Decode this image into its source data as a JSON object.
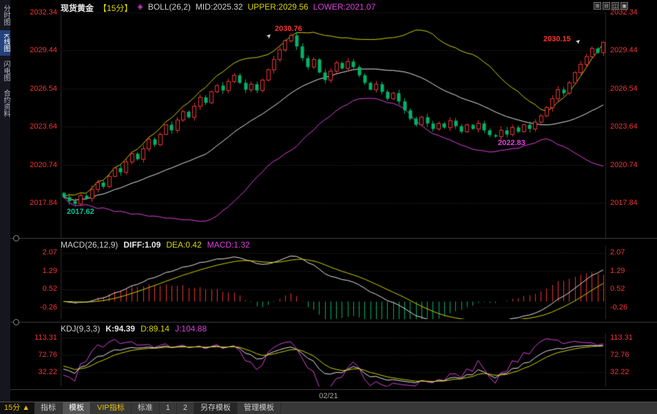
{
  "window": {
    "controls": [
      {
        "name": "grid",
        "glyph": "⊞"
      },
      {
        "name": "split",
        "glyph": "⊟"
      },
      {
        "name": "window",
        "glyph": "◫"
      },
      {
        "name": "panel",
        "glyph": "▣"
      }
    ]
  },
  "sidebar": {
    "items": [
      {
        "label": "分时图",
        "active": false
      },
      {
        "label": "K线图",
        "active": true
      },
      {
        "label": "闪电图",
        "active": false
      },
      {
        "label": "合约资料",
        "active": false
      }
    ]
  },
  "header": {
    "symbol": "现货黄金",
    "period": "【15分】",
    "indicator_icon": "◈",
    "boll_label": "BOLL(26,2)",
    "mid_label": "MID:2025.32",
    "upper_label": "UPPER:2029.56",
    "lower_label": "LOWER:2021.07"
  },
  "main_chart": {
    "y_axis": [
      "2032.34",
      "2029.44",
      "2026.54",
      "2023.64",
      "2020.74",
      "2017.84"
    ],
    "annotations": {
      "peak1": "2030.76",
      "peak2": "2030.15",
      "dip": "2022.83",
      "start_low": "2017.62"
    }
  },
  "macd": {
    "title": "MACD(26,12,9)",
    "diff_label": "DIFF:1.09",
    "dea_label": "DEA:0.42",
    "macd_label": "MACD:1.32",
    "y_axis": [
      "2.07",
      "1.29",
      "0.52",
      "-0.26"
    ]
  },
  "kdj": {
    "title": "KDJ(9,3,3)",
    "k_label": "K:94.39",
    "d_label": "D:89.14",
    "j_label": "J:104.88",
    "y_axis": [
      "113.31",
      "72.76",
      "32.22"
    ]
  },
  "time_axis": {
    "date": "02/21"
  },
  "bottom_bar": {
    "period": "15分 ▲",
    "items": [
      {
        "label": "指标",
        "style": "normal"
      },
      {
        "label": "模板",
        "style": "active"
      },
      {
        "label": "VIP指标",
        "style": "vip"
      },
      {
        "label": "标准",
        "style": "normal"
      },
      {
        "label": "1",
        "style": "normal"
      },
      {
        "label": "2",
        "style": "normal"
      },
      {
        "label": "另存模板",
        "style": "dark"
      },
      {
        "label": "管理模板",
        "style": "normal"
      }
    ]
  },
  "icons": {
    "arrow": "➤"
  },
  "colors": {
    "up_red": "#ee3232",
    "down_green": "#00b46a",
    "axis_red": "#f03434",
    "yellow": "#d4d400",
    "magenta": "#e040e0",
    "white_line": "#e8e8e8",
    "grid": "#3a2f2f",
    "border": "#2a2a2a",
    "teal_label": "#00c49a",
    "accent_yellow_text": "#e8c000"
  },
  "chart_data": {
    "type": "candlestick",
    "symbol": "现货黄金",
    "interval": "15分",
    "date": "02/21",
    "closes": [
      2018.3,
      2018.0,
      2017.8,
      2018.4,
      2018.2,
      2018.9,
      2019.4,
      2019.1,
      2019.9,
      2020.5,
      2020.2,
      2021.0,
      2021.6,
      2021.2,
      2022.0,
      2022.7,
      2022.3,
      2023.1,
      2023.8,
      2023.4,
      2024.2,
      2024.8,
      2024.4,
      2025.2,
      2025.9,
      2025.5,
      2026.3,
      2026.8,
      2026.4,
      2027.1,
      2027.6,
      2027.0,
      2026.5,
      2026.9,
      2026.4,
      2027.2,
      2028.0,
      2028.8,
      2029.5,
      2030.2,
      2030.6,
      2029.8,
      2028.9,
      2028.2,
      2028.8,
      2027.8,
      2027.2,
      2027.9,
      2028.5,
      2028.1,
      2028.6,
      2028.2,
      2027.6,
      2027.0,
      2026.5,
      2026.9,
      2026.3,
      2025.8,
      2026.2,
      2025.6,
      2024.9,
      2024.3,
      2023.8,
      2024.4,
      2023.9,
      2023.5,
      2023.9,
      2023.6,
      2024.1,
      2023.7,
      2023.3,
      2023.8,
      2023.5,
      2023.9,
      2023.4,
      2023.0,
      2022.9,
      2023.4,
      2023.1,
      2023.6,
      2023.3,
      2023.8,
      2023.5,
      2024.0,
      2024.5,
      2025.1,
      2025.8,
      2026.5,
      2026.2,
      2027.0,
      2027.8,
      2028.4,
      2029.0,
      2029.6,
      2029.3,
      2030.1
    ],
    "extremes": [
      {
        "index": 2,
        "type": "low",
        "value": 2017.62
      },
      {
        "index": 40,
        "type": "high",
        "value": 2030.76
      },
      {
        "index": 76,
        "type": "low",
        "value": 2022.83
      },
      {
        "index": 95,
        "type": "high",
        "value": 2030.15
      }
    ],
    "boll": {
      "period": 26,
      "mult": 2,
      "mid": 2025.32,
      "upper": 2029.56,
      "lower": 2021.07
    },
    "macd": {
      "fast": 12,
      "slow": 26,
      "signal": 9,
      "diff": 1.09,
      "dea": 0.42,
      "macd": 1.32
    },
    "kdj": {
      "params": [
        9,
        3,
        3
      ],
      "k": 94.39,
      "d": 89.14,
      "j": 104.88
    },
    "price_gridlines": [
      2032.34,
      2029.44,
      2026.54,
      2023.64,
      2020.74,
      2017.84
    ],
    "macd_gridlines": [
      2.07,
      1.29,
      0.52,
      -0.26
    ],
    "kdj_gridlines": [
      113.31,
      72.76,
      32.22
    ]
  }
}
